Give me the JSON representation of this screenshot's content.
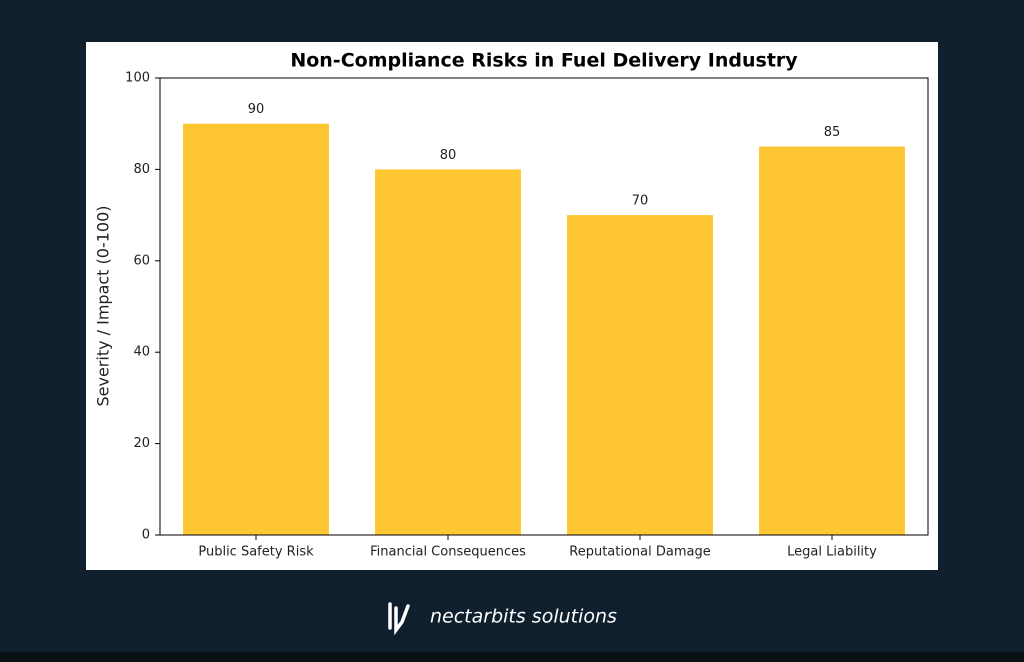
{
  "chart_data": {
    "type": "bar",
    "title": "Non-Compliance Risks in Fuel Delivery Industry",
    "y_label": "Severity / Impact (0-100)",
    "categories": [
      "Public Safety Risk",
      "Financial Consequences",
      "Reputational Damage",
      "Legal Liability"
    ],
    "values": [
      90,
      80,
      70,
      85
    ],
    "color": "#ffc633",
    "ylim": [
      0,
      100
    ],
    "yticks": [
      0,
      20,
      40,
      60,
      80,
      100
    ],
    "grid": false
  },
  "footer": {
    "brand": "nectarbits solutions"
  }
}
